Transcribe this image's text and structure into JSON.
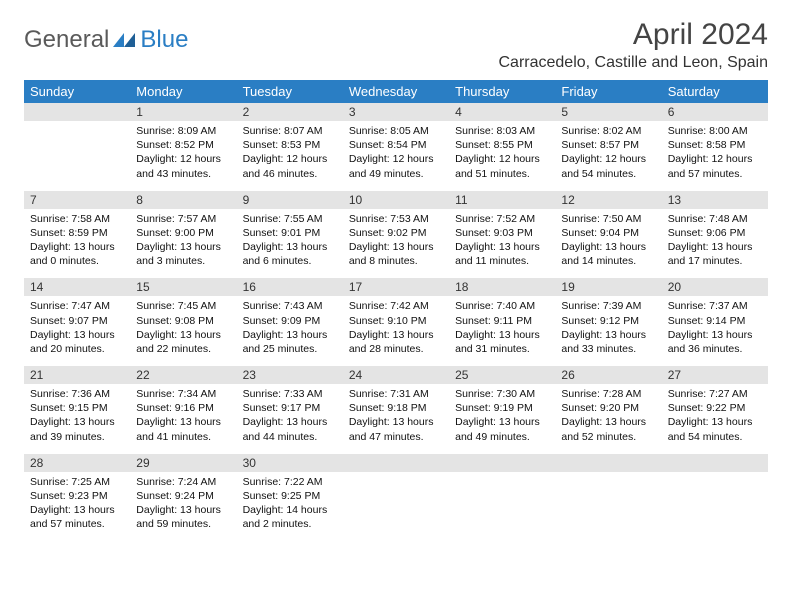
{
  "brand": {
    "part1": "General",
    "part2": "Blue"
  },
  "title": "April 2024",
  "location": "Carracedelo, Castille and Leon, Spain",
  "colors": {
    "header_bg": "#2a7ec4",
    "header_text": "#ffffff",
    "daynum_bg": "#e4e4e4",
    "rule": "#2a7ec4",
    "page_bg": "#ffffff",
    "text": "#000000",
    "title_text": "#444444"
  },
  "weekdays": [
    "Sunday",
    "Monday",
    "Tuesday",
    "Wednesday",
    "Thursday",
    "Friday",
    "Saturday"
  ],
  "weeks": [
    [
      null,
      {
        "n": "1",
        "sunrise": "8:09 AM",
        "sunset": "8:52 PM",
        "daylight": "12 hours and 43 minutes."
      },
      {
        "n": "2",
        "sunrise": "8:07 AM",
        "sunset": "8:53 PM",
        "daylight": "12 hours and 46 minutes."
      },
      {
        "n": "3",
        "sunrise": "8:05 AM",
        "sunset": "8:54 PM",
        "daylight": "12 hours and 49 minutes."
      },
      {
        "n": "4",
        "sunrise": "8:03 AM",
        "sunset": "8:55 PM",
        "daylight": "12 hours and 51 minutes."
      },
      {
        "n": "5",
        "sunrise": "8:02 AM",
        "sunset": "8:57 PM",
        "daylight": "12 hours and 54 minutes."
      },
      {
        "n": "6",
        "sunrise": "8:00 AM",
        "sunset": "8:58 PM",
        "daylight": "12 hours and 57 minutes."
      }
    ],
    [
      {
        "n": "7",
        "sunrise": "7:58 AM",
        "sunset": "8:59 PM",
        "daylight": "13 hours and 0 minutes."
      },
      {
        "n": "8",
        "sunrise": "7:57 AM",
        "sunset": "9:00 PM",
        "daylight": "13 hours and 3 minutes."
      },
      {
        "n": "9",
        "sunrise": "7:55 AM",
        "sunset": "9:01 PM",
        "daylight": "13 hours and 6 minutes."
      },
      {
        "n": "10",
        "sunrise": "7:53 AM",
        "sunset": "9:02 PM",
        "daylight": "13 hours and 8 minutes."
      },
      {
        "n": "11",
        "sunrise": "7:52 AM",
        "sunset": "9:03 PM",
        "daylight": "13 hours and 11 minutes."
      },
      {
        "n": "12",
        "sunrise": "7:50 AM",
        "sunset": "9:04 PM",
        "daylight": "13 hours and 14 minutes."
      },
      {
        "n": "13",
        "sunrise": "7:48 AM",
        "sunset": "9:06 PM",
        "daylight": "13 hours and 17 minutes."
      }
    ],
    [
      {
        "n": "14",
        "sunrise": "7:47 AM",
        "sunset": "9:07 PM",
        "daylight": "13 hours and 20 minutes."
      },
      {
        "n": "15",
        "sunrise": "7:45 AM",
        "sunset": "9:08 PM",
        "daylight": "13 hours and 22 minutes."
      },
      {
        "n": "16",
        "sunrise": "7:43 AM",
        "sunset": "9:09 PM",
        "daylight": "13 hours and 25 minutes."
      },
      {
        "n": "17",
        "sunrise": "7:42 AM",
        "sunset": "9:10 PM",
        "daylight": "13 hours and 28 minutes."
      },
      {
        "n": "18",
        "sunrise": "7:40 AM",
        "sunset": "9:11 PM",
        "daylight": "13 hours and 31 minutes."
      },
      {
        "n": "19",
        "sunrise": "7:39 AM",
        "sunset": "9:12 PM",
        "daylight": "13 hours and 33 minutes."
      },
      {
        "n": "20",
        "sunrise": "7:37 AM",
        "sunset": "9:14 PM",
        "daylight": "13 hours and 36 minutes."
      }
    ],
    [
      {
        "n": "21",
        "sunrise": "7:36 AM",
        "sunset": "9:15 PM",
        "daylight": "13 hours and 39 minutes."
      },
      {
        "n": "22",
        "sunrise": "7:34 AM",
        "sunset": "9:16 PM",
        "daylight": "13 hours and 41 minutes."
      },
      {
        "n": "23",
        "sunrise": "7:33 AM",
        "sunset": "9:17 PM",
        "daylight": "13 hours and 44 minutes."
      },
      {
        "n": "24",
        "sunrise": "7:31 AM",
        "sunset": "9:18 PM",
        "daylight": "13 hours and 47 minutes."
      },
      {
        "n": "25",
        "sunrise": "7:30 AM",
        "sunset": "9:19 PM",
        "daylight": "13 hours and 49 minutes."
      },
      {
        "n": "26",
        "sunrise": "7:28 AM",
        "sunset": "9:20 PM",
        "daylight": "13 hours and 52 minutes."
      },
      {
        "n": "27",
        "sunrise": "7:27 AM",
        "sunset": "9:22 PM",
        "daylight": "13 hours and 54 minutes."
      }
    ],
    [
      {
        "n": "28",
        "sunrise": "7:25 AM",
        "sunset": "9:23 PM",
        "daylight": "13 hours and 57 minutes."
      },
      {
        "n": "29",
        "sunrise": "7:24 AM",
        "sunset": "9:24 PM",
        "daylight": "13 hours and 59 minutes."
      },
      {
        "n": "30",
        "sunrise": "7:22 AM",
        "sunset": "9:25 PM",
        "daylight": "14 hours and 2 minutes."
      },
      null,
      null,
      null,
      null
    ]
  ],
  "labels": {
    "sunrise": "Sunrise:",
    "sunset": "Sunset:",
    "daylight": "Daylight:"
  }
}
